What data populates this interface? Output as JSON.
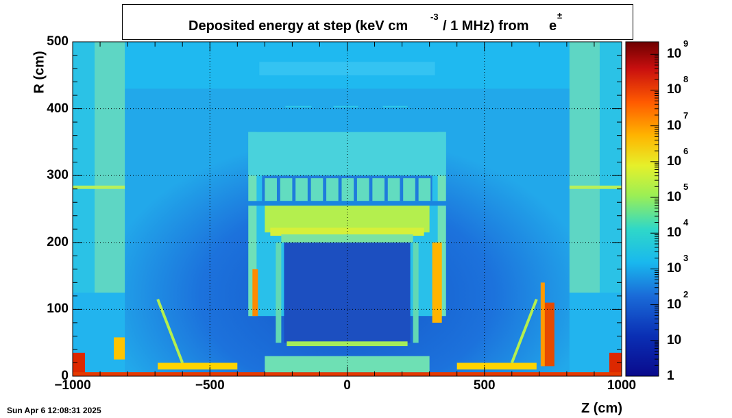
{
  "chart_data": {
    "type": "heatmap",
    "title": "Deposited energy at step (keV cm",
    "title_exp": "-3",
    "title_rest": "/ 1 MHz)  from",
    "particle": "e",
    "particle_sup": "±",
    "xlabel": "Z (cm)",
    "ylabel": "R (cm)",
    "xlim": [
      -1000,
      1000
    ],
    "ylim": [
      0,
      500
    ],
    "x_ticks": [
      "−1000",
      "−500",
      "0",
      "500",
      "1000"
    ],
    "y_ticks": [
      "0",
      "100",
      "200",
      "300",
      "400",
      "500"
    ],
    "grid": true,
    "color_scale": "log",
    "colorbar_range": [
      1,
      1000000000
    ],
    "colorbar_ticks": [
      {
        "base": "1",
        "exp": ""
      },
      {
        "base": "10",
        "exp": ""
      },
      {
        "base": "10",
        "exp": "2"
      },
      {
        "base": "10",
        "exp": "3"
      },
      {
        "base": "10",
        "exp": "4"
      },
      {
        "base": "10",
        "exp": "5"
      },
      {
        "base": "10",
        "exp": "6"
      },
      {
        "base": "10",
        "exp": "7"
      },
      {
        "base": "10",
        "exp": "8"
      },
      {
        "base": "10",
        "exp": "9"
      }
    ],
    "colors": {
      "low": "#00008b",
      "mid_low": "#1e6fd9",
      "mid": "#19c3f0",
      "mid_high": "#b4f04a",
      "high": "#ffd400",
      "peak": "#e62800",
      "max": "#6e0000"
    }
  },
  "footer": {
    "timestamp": "Sun Apr  6 12:08:31 2025"
  }
}
